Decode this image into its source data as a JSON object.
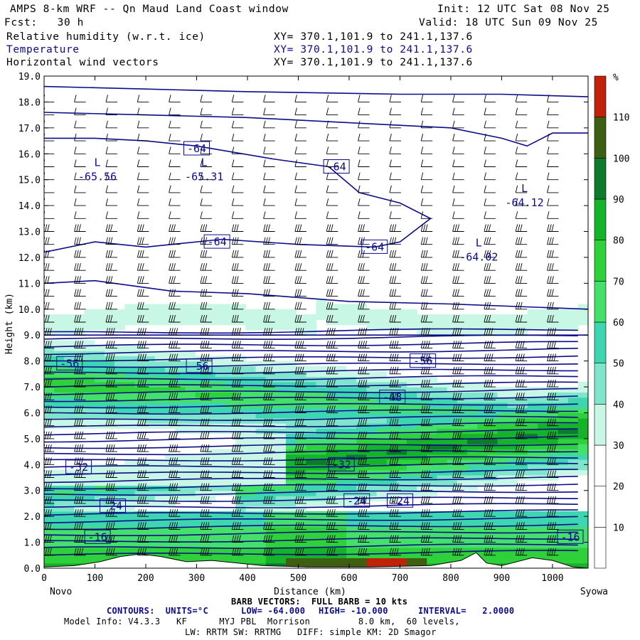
{
  "header": {
    "title": "AMPS 8-km WRF -- Qn Maud Land Coast window",
    "init": "Init: 12 UTC Sat 08 Nov 25",
    "fcst": "Fcst:   30 h",
    "valid": "Valid: 18 UTC Sun 09 Nov 25",
    "fields": [
      {
        "name": "Relative humidity (w.r.t. ice)",
        "xy": "XY= 370.1,101.9 to 241.1,137.6"
      },
      {
        "name": "Temperature",
        "xy": "XY= 370.1,101.9 to 241.1,137.6"
      },
      {
        "name": "Horizontal wind vectors",
        "xy": "XY= 370.1,101.9 to 241.1,137.6"
      }
    ]
  },
  "chart_data": {
    "type": "heatmap",
    "title": "AMPS 8-km WRF cross-section",
    "xlabel": "Distance (km)",
    "ylabel": "Height (km)",
    "xlim": [
      0,
      1070
    ],
    "ylim": [
      0,
      19
    ],
    "x_ticks": [
      0,
      100,
      200,
      300,
      400,
      500,
      600,
      700,
      800,
      900,
      1000
    ],
    "y_ticks": [
      "0.0",
      "1.0",
      "2.0",
      "3.0",
      "4.0",
      "5.0",
      "6.0",
      "7.0",
      "8.0",
      "9.0",
      "10.0",
      "11.0",
      "12.0",
      "13.0",
      "14.0",
      "15.0",
      "16.0",
      "17.0",
      "18.0",
      "19.0"
    ],
    "left_end_label": "Novo",
    "right_end_label": "Syowa",
    "colorbar": {
      "unit": "%",
      "ticks": [
        10,
        20,
        30,
        40,
        50,
        60,
        70,
        80,
        90,
        100,
        110
      ],
      "bins": [
        {
          "lo": 0,
          "hi": 10,
          "color": "#ffffff"
        },
        {
          "lo": 10,
          "hi": 20,
          "color": "#ffffff"
        },
        {
          "lo": 20,
          "hi": 30,
          "color": "#ffffff"
        },
        {
          "lo": 30,
          "hi": 40,
          "color": "#c8f7e6"
        },
        {
          "lo": 40,
          "hi": 50,
          "color": "#7fe6cc"
        },
        {
          "lo": 50,
          "hi": 60,
          "color": "#3dd6b0"
        },
        {
          "lo": 60,
          "hi": 70,
          "color": "#44e06a"
        },
        {
          "lo": 70,
          "hi": 80,
          "color": "#2fd13a"
        },
        {
          "lo": 80,
          "hi": 90,
          "color": "#14b32a"
        },
        {
          "lo": 90,
          "hi": 100,
          "color": "#0e7a2e"
        },
        {
          "lo": 100,
          "hi": 110,
          "color": "#3e5f12"
        },
        {
          "lo": 110,
          "hi": 120,
          "color": "#c0220a"
        }
      ]
    },
    "temperature_labels": [
      {
        "text": "-64",
        "x": 300,
        "z": 16.2
      },
      {
        "text": "-64",
        "x": 575,
        "z": 15.5
      },
      {
        "text": "-64",
        "x": 340,
        "z": 12.6
      },
      {
        "text": "-64",
        "x": 650,
        "z": 12.4
      },
      {
        "text": "-56",
        "x": 50,
        "z": 7.9
      },
      {
        "text": "-56",
        "x": 305,
        "z": 7.8
      },
      {
        "text": "-56",
        "x": 745,
        "z": 8.0
      },
      {
        "text": "-48",
        "x": 685,
        "z": 6.6
      },
      {
        "text": "-32",
        "x": 585,
        "z": 4.0
      },
      {
        "text": "-32",
        "x": 68,
        "z": 3.9
      },
      {
        "text": "-24",
        "x": 615,
        "z": 2.6
      },
      {
        "text": "-24",
        "x": 700,
        "z": 2.6
      },
      {
        "text": "-24",
        "x": 135,
        "z": 2.4
      },
      {
        "text": "-16",
        "x": 105,
        "z": 1.2
      },
      {
        "text": "-16",
        "x": 1035,
        "z": 1.2
      }
    ],
    "lows": [
      {
        "marker": "L",
        "value": "-65.56",
        "x": 70,
        "z": 15.2
      },
      {
        "marker": "L",
        "value": "-65.31",
        "x": 280,
        "z": 15.2
      },
      {
        "marker": "L",
        "value": "-64.12",
        "x": 910,
        "z": 14.2
      },
      {
        "marker": "L",
        "value": "-64.02",
        "x": 820,
        "z": 12.1
      }
    ]
  },
  "footer": {
    "barb": "BARB VECTORS:  FULL BARB = 10 kts",
    "contours_label": "CONTOURS:  UNITS=°C",
    "low": "LOW= -64.000",
    "high": "HIGH= -10.000",
    "interval": "INTERVAL=   2.0000",
    "model_info": "Model Info: V4.3.3   KF      MYJ PBL  Morrison         8.0 km,  60 levels,",
    "physics": "LW: RRTM SW: RRTMG   DIFF: simple KM: 2D Smagor"
  },
  "colors": {
    "contour": "#0b0b8c",
    "terrain": "#ffffff",
    "barb": "#000000"
  }
}
